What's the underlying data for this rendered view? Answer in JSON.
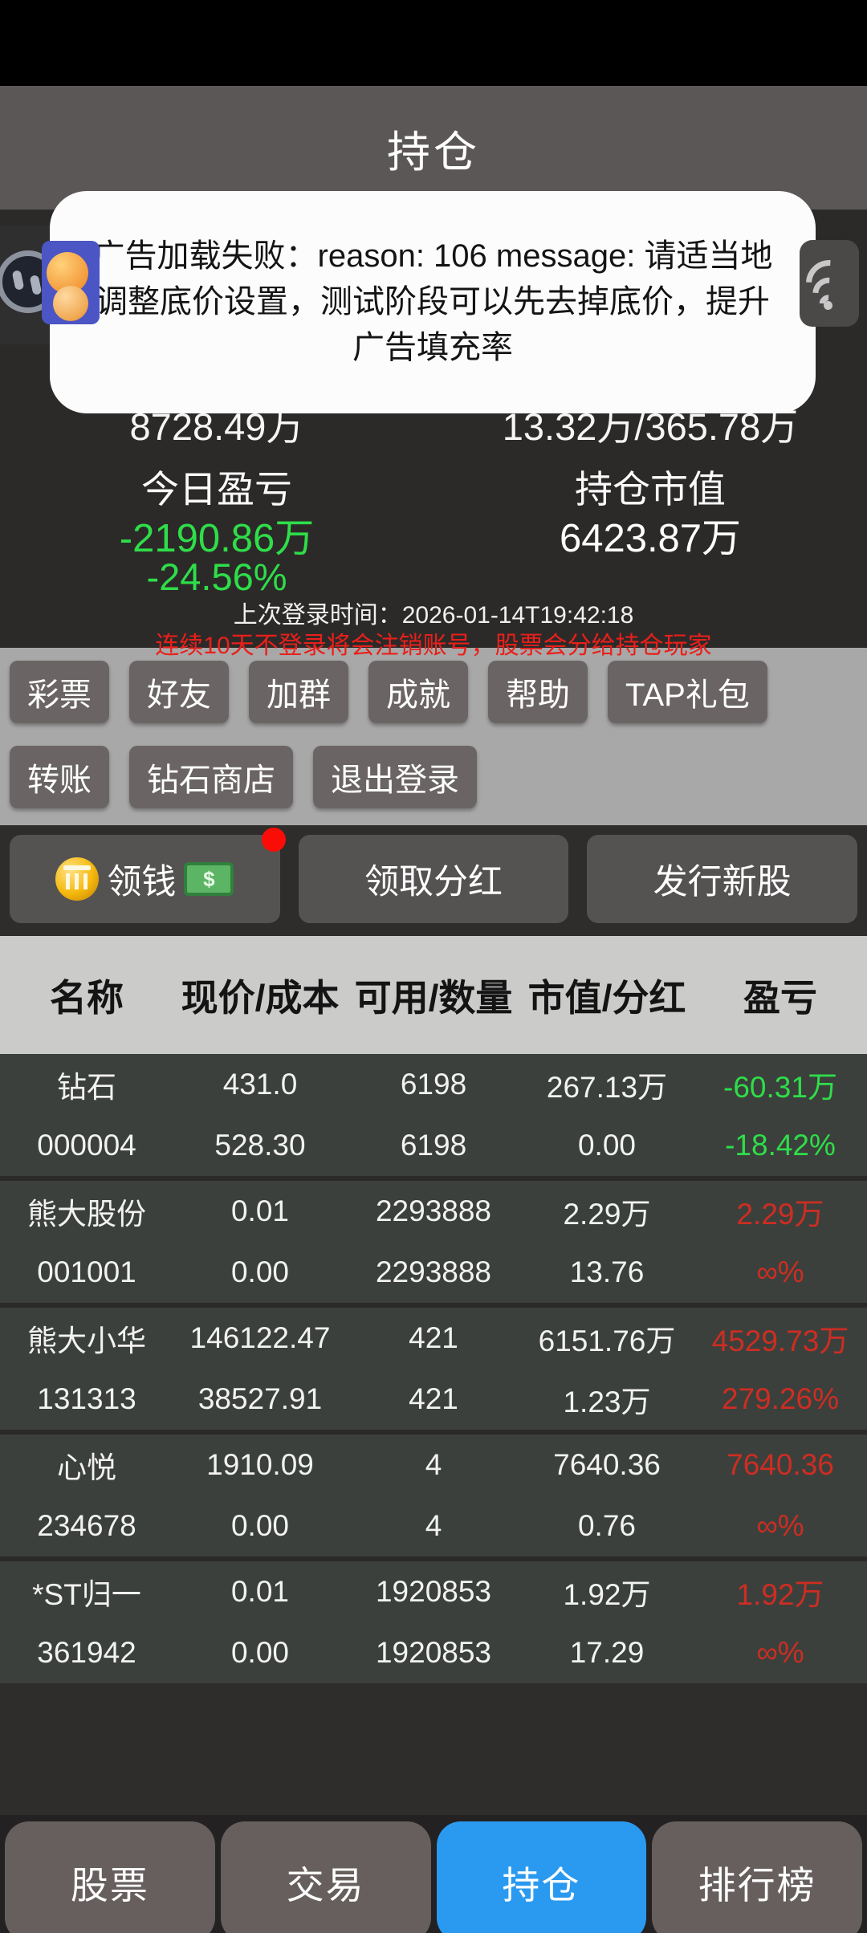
{
  "header": {
    "title": "持仓"
  },
  "toast": {
    "message": "广告加载失败：reason: 106  message: 请适当地调整底价设置，测试阶段可以先去掉底价，提升广告填充率"
  },
  "account": {
    "total_assets_partial": "8728.49万",
    "cash_partial": "13.32万/365.78万",
    "today_pnl_label": "今日盈亏",
    "today_pnl_value": "-2190.86万",
    "today_pnl_percent": "-24.56%",
    "market_value_label": "持仓市值",
    "market_value": "6423.87万",
    "last_login": "上次登录时间：2026-01-14T19:42:18",
    "warning": "连续10天不登录将会注销账号，股票会分给持仓玩家"
  },
  "quick_actions": {
    "row1": [
      "彩票",
      "好友",
      "加群",
      "成就",
      "帮助",
      "TAP礼包"
    ],
    "row2": [
      "转账",
      "钻石商店",
      "退出登录"
    ]
  },
  "claims": {
    "claim_money": "领钱",
    "claim_dividend": "领取分红",
    "issue_new_shares": "发行新股"
  },
  "table": {
    "headers": [
      "名称",
      "现价/成本",
      "可用/数量",
      "市值/分红",
      "盈亏"
    ],
    "groups": [
      {
        "pnl_color": "green",
        "rows": [
          [
            "钻石",
            "431.0",
            "6198",
            "267.13万",
            "-60.31万"
          ],
          [
            "000004",
            "528.30",
            "6198",
            "0.00",
            "-18.42%"
          ]
        ]
      },
      {
        "pnl_color": "red",
        "rows": [
          [
            "熊大股份",
            "0.01",
            "2293888",
            "2.29万",
            "2.29万"
          ],
          [
            "001001",
            "0.00",
            "2293888",
            "13.76",
            "∞%"
          ]
        ]
      },
      {
        "pnl_color": "red",
        "rows": [
          [
            "熊大小华",
            "146122.47",
            "421",
            "6151.76万",
            "4529.73万"
          ],
          [
            "131313",
            "38527.91",
            "421",
            "1.23万",
            "279.26%"
          ]
        ]
      },
      {
        "pnl_color": "red",
        "rows": [
          [
            "心悦",
            "1910.09",
            "4",
            "7640.36",
            "7640.36"
          ],
          [
            "234678",
            "0.00",
            "4",
            "0.76",
            "∞%"
          ]
        ]
      },
      {
        "pnl_color": "red",
        "rows": [
          [
            "*ST归一",
            "0.01",
            "1920853",
            "1.92万",
            "1.92万"
          ],
          [
            "361942",
            "0.00",
            "1920853",
            "17.29",
            "∞%"
          ]
        ]
      }
    ]
  },
  "bottom_nav": {
    "tabs": [
      "股票",
      "交易",
      "持仓",
      "排行榜"
    ],
    "active_index": 2
  },
  "icons": {
    "floating_ball": "pause-ball-icon",
    "floating_app": "emoji-app-icon",
    "announcement": "sound-waves-icon",
    "claim_coin": "gold-bank-coin-icon",
    "claim_cash": "dollar-banknote-icon",
    "notification": "red-dot-badge"
  },
  "colors": {
    "profit_green": "#2ede49",
    "table_red": "#ce2d22",
    "warning_red": "#ea1f1a",
    "accent_blue": "#2a9af0",
    "notification_red": "#fb0d07"
  }
}
